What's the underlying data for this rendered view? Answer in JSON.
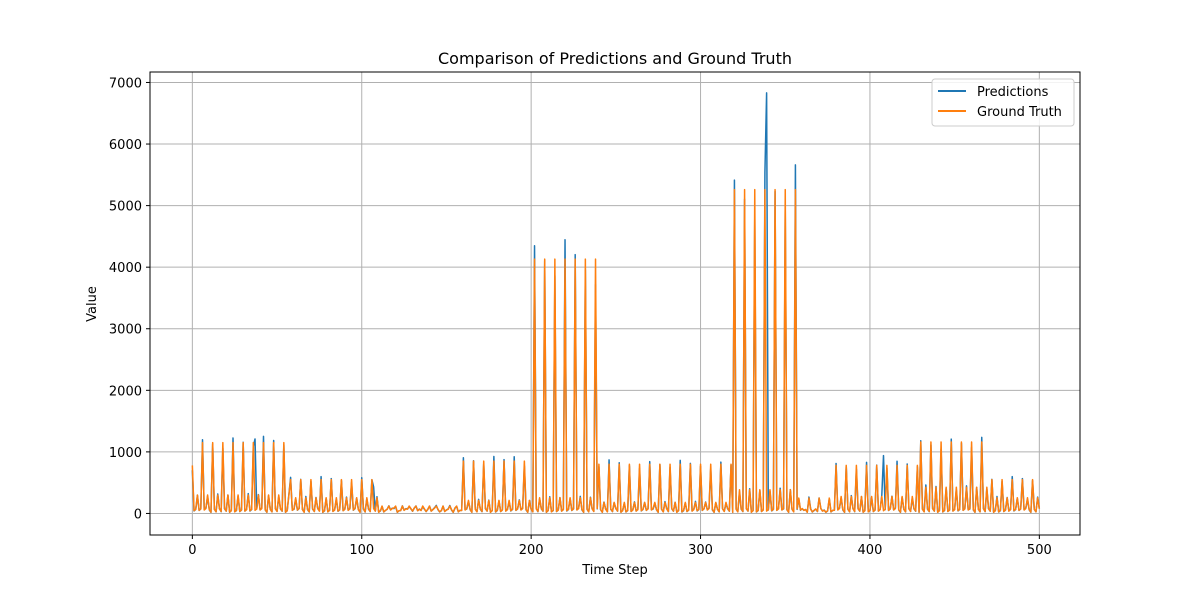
{
  "chart_data": {
    "type": "line",
    "title": "Comparison of Predictions and Ground Truth",
    "xlabel": "Time Step",
    "ylabel": "Value",
    "xlim": [
      -25,
      524
    ],
    "ylim": [
      -350,
      7170
    ],
    "xticks": [
      0,
      100,
      200,
      300,
      400,
      500
    ],
    "yticks": [
      0,
      1000,
      2000,
      3000,
      4000,
      5000,
      6000,
      7000
    ],
    "grid": true,
    "legend_position": "top-right",
    "series": [
      {
        "name": "Predictions",
        "color": "#1f77b4"
      },
      {
        "name": "Ground Truth",
        "color": "#ff7f0e"
      }
    ],
    "segments": [
      {
        "start": 0,
        "end": 58,
        "peak": 1150,
        "mid": 500,
        "period": 6
      },
      {
        "start": 58,
        "end": 112,
        "peak": 550,
        "mid": 300,
        "period": 6
      },
      {
        "start": 112,
        "end": 160,
        "peak": 120,
        "mid": 80,
        "period": 4
      },
      {
        "start": 160,
        "end": 202,
        "peak": 850,
        "mid": 250,
        "period": 6
      },
      {
        "start": 202,
        "end": 240,
        "peak": 4130,
        "mid": 300,
        "period": 6
      },
      {
        "start": 240,
        "end": 320,
        "peak": 800,
        "mid": 300,
        "period": 6
      },
      {
        "start": 320,
        "end": 358,
        "peak": 5260,
        "mid": 350,
        "period": 6
      },
      {
        "start": 358,
        "end": 380,
        "peak": 250,
        "mid": 60,
        "period": 6
      },
      {
        "start": 380,
        "end": 430,
        "peak": 780,
        "mid": 250,
        "period": 6
      },
      {
        "start": 430,
        "end": 472,
        "peak": 1160,
        "mid": 500,
        "period": 6
      },
      {
        "start": 472,
        "end": 500,
        "peak": 550,
        "mid": 300,
        "period": 6
      }
    ],
    "prediction_outliers": [
      {
        "x": 37,
        "y": 1210
      },
      {
        "x": 107,
        "y": 430
      },
      {
        "x": 190,
        "y": 920
      },
      {
        "x": 339,
        "y": 6830
      },
      {
        "x": 408,
        "y": 940
      }
    ]
  }
}
